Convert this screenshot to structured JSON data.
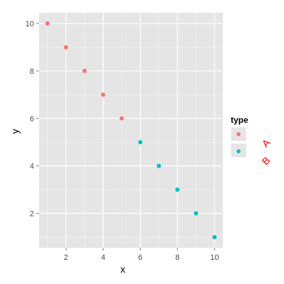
{
  "chart_data": {
    "type": "scatter",
    "title": "",
    "xlabel": "x",
    "ylabel": "y",
    "xlim": [
      0.55,
      10.45
    ],
    "ylim": [
      0.55,
      10.45
    ],
    "x_ticks": [
      2,
      4,
      6,
      8,
      10
    ],
    "y_ticks": [
      2,
      4,
      6,
      8,
      10
    ],
    "grid": true,
    "legend": {
      "title": "type",
      "placement": "right",
      "entries": [
        {
          "name": "A",
          "color": "#F8766D"
        },
        {
          "name": "B",
          "color": "#00BFC4"
        }
      ]
    },
    "series": [
      {
        "name": "A",
        "color": "#F8766D",
        "x": [
          1,
          2,
          3,
          4,
          5
        ],
        "y": [
          10,
          9,
          8,
          7,
          6
        ]
      },
      {
        "name": "B",
        "color": "#00BFC4",
        "x": [
          6,
          7,
          8,
          9,
          10
        ],
        "y": [
          5,
          4,
          3,
          2,
          1
        ]
      }
    ]
  },
  "colors": {
    "panel_background": "#E5E5E5",
    "grid_major": "#FFFFFF",
    "grid_minor": "#F2F2F2",
    "legend_text": "#FF0000"
  }
}
